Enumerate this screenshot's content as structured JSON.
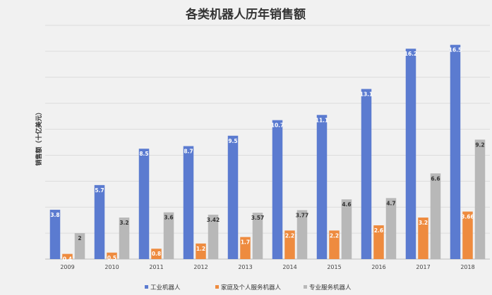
{
  "chart_data": {
    "type": "bar",
    "title": "各类机器人历年销售额",
    "ylabel": "销售额（十亿美元）",
    "xlabel": "",
    "categories": [
      "2009",
      "2010",
      "2011",
      "2012",
      "2013",
      "2014",
      "2015",
      "2016",
      "2017",
      "2018"
    ],
    "ylim": [
      0,
      18
    ],
    "grid": true,
    "legend_position": "bottom",
    "series": [
      {
        "name": "工业机器人",
        "color": "#5b7bd0",
        "values": [
          3.8,
          5.7,
          8.5,
          8.7,
          9.5,
          10.7,
          11.1,
          13.1,
          16.2,
          16.5
        ],
        "labels": [
          "3.8",
          "5.7",
          "8.5",
          "8.7",
          "9.5",
          "10.7",
          "11.1",
          "13.1",
          "16.2",
          "16.5"
        ]
      },
      {
        "name": "家庭及个人服务机器人",
        "color": "#ee8b3f",
        "values": [
          0.4,
          0.5,
          0.8,
          1.2,
          1.7,
          2.2,
          2.2,
          2.6,
          3.2,
          3.66
        ],
        "labels": [
          "0.4",
          "0.5",
          "0.8",
          "1.2",
          "1.7",
          "2.2",
          "2.2",
          "2.6",
          "3.2",
          "3.66"
        ]
      },
      {
        "name": "专业服务机器人",
        "color": "#b8b8b8",
        "values": [
          2,
          3.2,
          3.6,
          3.42,
          3.57,
          3.77,
          4.6,
          4.7,
          6.6,
          9.2
        ],
        "labels": [
          "2",
          "3.2",
          "3.6",
          "3.42",
          "3.57",
          "3.77",
          "4.6",
          "4.7",
          "6.6",
          "9.2"
        ]
      }
    ]
  }
}
